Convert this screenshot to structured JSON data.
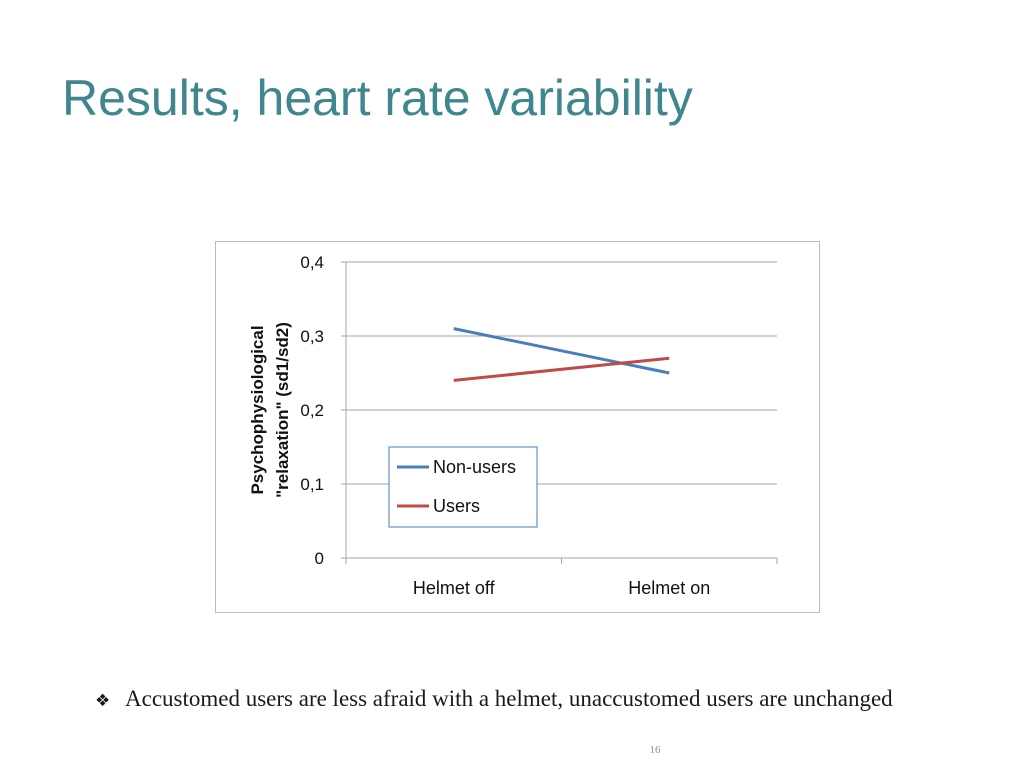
{
  "slide": {
    "title": "Results, heart rate variability",
    "bullet_icon": "diamond-bullet-icon",
    "bullet_text": "Accustomed users are less afraid with a helmet, unaccustomed users are unchanged",
    "page_number": "16"
  },
  "chart_data": {
    "type": "line",
    "title": "",
    "categories": [
      "Helmet off",
      "Helmet on"
    ],
    "series": [
      {
        "name": "Non-users",
        "values": [
          0.31,
          0.25
        ],
        "color": "#4a7ebb"
      },
      {
        "name": "Users",
        "values": [
          0.24,
          0.27
        ],
        "color": "#be4b48"
      }
    ],
    "ylabel_lines": [
      "Psychophysiological",
      "\"relaxation\" (sd1/sd2)"
    ],
    "xlabel": "",
    "ylim": [
      0,
      0.4
    ],
    "yticks": [
      0,
      0.1,
      0.2,
      0.3,
      0.4
    ],
    "ytick_labels": [
      "0",
      "0,1",
      "0,2",
      "0,3",
      "0,4"
    ],
    "grid": true,
    "legend_position": "lower-left",
    "grid_color": "#a6a6a6"
  }
}
